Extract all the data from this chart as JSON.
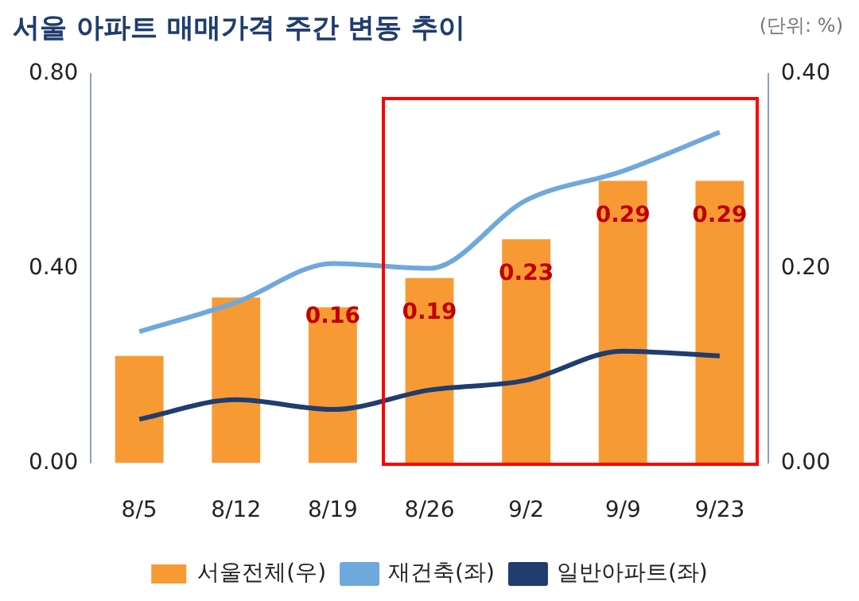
{
  "chart_data": {
    "type": "bar",
    "title": "서울 아파트 매매가격 주간 변동 추이",
    "annotations": [
      "(단위: %)"
    ],
    "categories": [
      "8/5",
      "8/12",
      "8/19",
      "8/26",
      "9/2",
      "9/9",
      "9/23"
    ],
    "series": [
      {
        "name": "서울전체(우)",
        "axis": "y2",
        "color": "#f79a34",
        "values": [
          0.11,
          0.17,
          0.16,
          0.19,
          0.23,
          0.29,
          0.29
        ],
        "value_labels": [
          null,
          null,
          "0.16",
          "0.19",
          "0.23",
          "0.29",
          "0.29"
        ]
      },
      {
        "name": "재건축(좌)",
        "type": "line",
        "color": "#6fa8dc",
        "values": [
          0.27,
          0.33,
          0.41,
          0.4,
          0.54,
          0.6,
          0.68
        ]
      },
      {
        "name": "일반아파트(좌)",
        "type": "line",
        "color": "#1f3d6e",
        "values": [
          0.09,
          0.13,
          0.11,
          0.15,
          0.17,
          0.23,
          0.22
        ]
      }
    ],
    "ylim": [
      0,
      0.8
    ],
    "yticks": [
      {
        "value": 0,
        "label": "0.00"
      },
      {
        "value": 0.4,
        "label": "0.40"
      },
      {
        "value": 0.8,
        "label": "0.80"
      }
    ],
    "y2lim": [
      0,
      0.4
    ],
    "y2ticks": [
      {
        "value": 0,
        "label": "0.00"
      },
      {
        "value": 0.2,
        "label": "0.20"
      },
      {
        "value": 0.4,
        "label": "0.40"
      }
    ],
    "grid": false,
    "legend": "bottom",
    "marker": "none"
  }
}
